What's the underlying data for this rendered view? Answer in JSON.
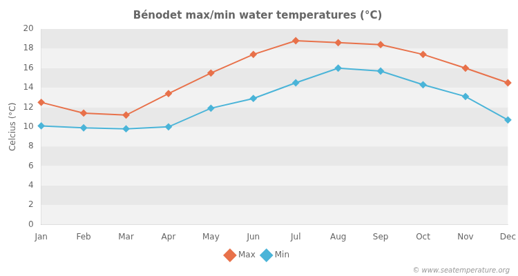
{
  "chart_data": {
    "type": "line",
    "title": "Bénodet max/min water temperatures (°C)",
    "y_label": "Celcius (°C)",
    "categories": [
      "Jan",
      "Feb",
      "Mar",
      "Apr",
      "May",
      "Jun",
      "Jul",
      "Aug",
      "Sep",
      "Oct",
      "Nov",
      "Dec"
    ],
    "series": [
      {
        "name": "Max",
        "color": "#e8714a",
        "marker": "diamond",
        "line_style": "solid",
        "values": [
          12.5,
          11.4,
          11.2,
          13.4,
          15.5,
          17.4,
          18.8,
          18.6,
          18.4,
          17.4,
          16.0,
          14.5
        ]
      },
      {
        "name": "Min",
        "color": "#4ab4d8",
        "marker": "diamond",
        "line_style": "solid",
        "values": [
          10.1,
          9.9,
          9.8,
          10.0,
          11.9,
          12.9,
          14.5,
          16.0,
          15.7,
          14.3,
          13.1,
          10.7
        ]
      }
    ],
    "ylim": [
      0,
      20
    ],
    "yticks": [
      0,
      2,
      4,
      6,
      8,
      10,
      12,
      14,
      16,
      18,
      20
    ],
    "grid": false,
    "legend": "bottom",
    "annotations": [
      "© www.seatemperature.org"
    ]
  }
}
